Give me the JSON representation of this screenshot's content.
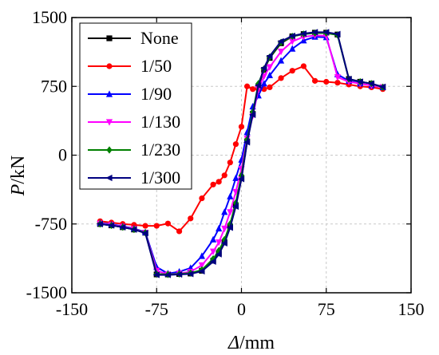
{
  "chart_data": {
    "type": "line",
    "xlabel_symbol": "Δ",
    "xlabel_unit": "/mm",
    "ylabel_symbol": "P",
    "ylabel_unit": "/kN",
    "xlim": [
      -150,
      150
    ],
    "ylim": [
      -1500,
      1500
    ],
    "xticks": [
      -150,
      -75,
      0,
      75,
      150
    ],
    "xtick_labels": [
      "-150",
      "-75",
      "0",
      "75",
      "150"
    ],
    "yticks": [
      -1500,
      -750,
      0,
      750,
      1500
    ],
    "ytick_labels": [
      "-1500",
      "-750",
      "0",
      "750",
      "1500"
    ],
    "grid": true,
    "legend_position": "top-left",
    "series": [
      {
        "name": "None",
        "color": "#000000",
        "marker": "square",
        "x": [
          -125,
          -115,
          -105,
          -95,
          -85,
          -75,
          -65,
          -55,
          -45,
          -35,
          -25,
          -20,
          -15,
          -10,
          -5,
          0,
          5,
          10,
          15,
          20,
          25,
          35,
          45,
          55,
          65,
          75,
          85,
          95,
          105,
          115,
          125
        ],
        "y": [
          -750,
          -765,
          -785,
          -810,
          -845,
          -1300,
          -1300,
          -1295,
          -1290,
          -1260,
          -1150,
          -1070,
          -950,
          -780,
          -550,
          -250,
          150,
          450,
          750,
          930,
          1060,
          1220,
          1295,
          1320,
          1335,
          1335,
          1315,
          830,
          800,
          780,
          740
        ]
      },
      {
        "name": "1/50",
        "color": "#ff0000",
        "marker": "circle",
        "x": [
          -125,
          -115,
          -105,
          -95,
          -85,
          -75,
          -65,
          -55,
          -45,
          -35,
          -25,
          -20,
          -15,
          -10,
          -5,
          0,
          5,
          10,
          15,
          20,
          25,
          35,
          45,
          55,
          65,
          75,
          85,
          95,
          105,
          115,
          125
        ],
        "y": [
          -720,
          -735,
          -750,
          -760,
          -770,
          -770,
          -745,
          -830,
          -690,
          -470,
          -320,
          -290,
          -220,
          -80,
          120,
          310,
          750,
          720,
          720,
          720,
          740,
          840,
          920,
          970,
          810,
          800,
          790,
          770,
          750,
          740,
          720
        ]
      },
      {
        "name": "1/90",
        "color": "#0000ff",
        "marker": "triangle-up",
        "x": [
          -125,
          -115,
          -105,
          -95,
          -85,
          -75,
          -65,
          -55,
          -45,
          -35,
          -25,
          -20,
          -15,
          -10,
          -5,
          0,
          5,
          10,
          15,
          20,
          25,
          35,
          45,
          55,
          65,
          75,
          85,
          95,
          105,
          115,
          125
        ],
        "y": [
          -740,
          -755,
          -775,
          -800,
          -840,
          -1220,
          -1290,
          -1270,
          -1230,
          -1100,
          -920,
          -800,
          -620,
          -450,
          -250,
          -50,
          250,
          530,
          650,
          780,
          870,
          1030,
          1160,
          1250,
          1290,
          1285,
          880,
          810,
          780,
          760,
          740
        ]
      },
      {
        "name": "1/130",
        "color": "#ff00ff",
        "marker": "triangle-down",
        "x": [
          -125,
          -115,
          -105,
          -95,
          -85,
          -75,
          -65,
          -55,
          -45,
          -35,
          -25,
          -20,
          -15,
          -10,
          -5,
          0,
          5,
          10,
          15,
          20,
          25,
          35,
          45,
          55,
          65,
          75,
          85,
          95,
          105,
          115,
          125
        ],
        "y": [
          -745,
          -760,
          -780,
          -805,
          -845,
          -1260,
          -1300,
          -1290,
          -1270,
          -1200,
          -1050,
          -950,
          -800,
          -620,
          -400,
          -150,
          180,
          430,
          720,
          860,
          960,
          1130,
          1240,
          1290,
          1305,
          1300,
          850,
          800,
          780,
          760,
          740
        ]
      },
      {
        "name": "1/230",
        "color": "#008000",
        "marker": "diamond",
        "x": [
          -125,
          -115,
          -105,
          -95,
          -85,
          -75,
          -65,
          -55,
          -45,
          -35,
          -25,
          -20,
          -15,
          -10,
          -5,
          0,
          5,
          10,
          15,
          20,
          25,
          35,
          45,
          55,
          65,
          75,
          85,
          95,
          105,
          115,
          125
        ],
        "y": [
          -750,
          -765,
          -785,
          -810,
          -845,
          -1295,
          -1300,
          -1295,
          -1285,
          -1250,
          -1130,
          -1040,
          -920,
          -750,
          -520,
          -220,
          170,
          470,
          780,
          940,
          1070,
          1230,
          1295,
          1320,
          1330,
          1330,
          1310,
          830,
          800,
          780,
          740
        ]
      },
      {
        "name": "1/300",
        "color": "#000080",
        "marker": "triangle-left",
        "x": [
          -125,
          -115,
          -105,
          -95,
          -85,
          -75,
          -65,
          -55,
          -45,
          -35,
          -25,
          -20,
          -15,
          -10,
          -5,
          0,
          5,
          10,
          15,
          20,
          25,
          35,
          45,
          55,
          65,
          75,
          85,
          95,
          105,
          115,
          125
        ],
        "y": [
          -750,
          -765,
          -785,
          -810,
          -850,
          -1305,
          -1305,
          -1300,
          -1295,
          -1265,
          -1160,
          -1080,
          -960,
          -790,
          -560,
          -260,
          140,
          440,
          760,
          950,
          1080,
          1240,
          1300,
          1325,
          1340,
          1340,
          1320,
          830,
          800,
          780,
          745
        ]
      }
    ]
  }
}
